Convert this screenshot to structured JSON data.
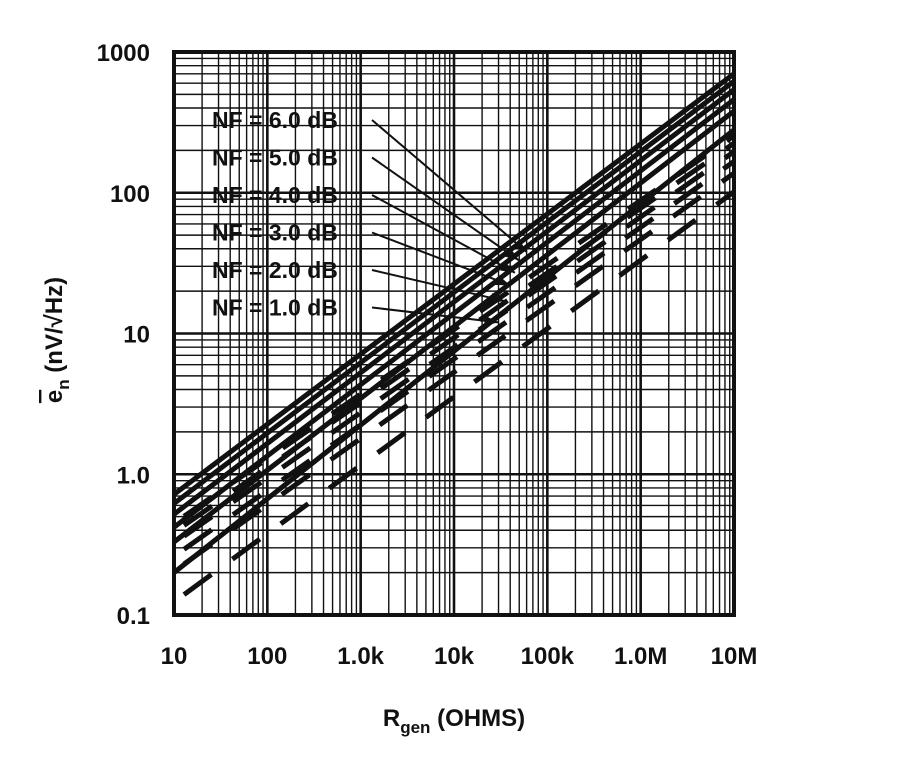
{
  "chart_data": {
    "type": "line",
    "xscale": "log",
    "yscale": "log",
    "xlim": [
      10,
      10000000
    ],
    "ylim": [
      0.1,
      1000
    ],
    "grid": true,
    "x_ticks": [
      {
        "value": 10,
        "label": "10"
      },
      {
        "value": 100,
        "label": "100"
      },
      {
        "value": 1000,
        "label": "1.0k"
      },
      {
        "value": 10000,
        "label": "10k"
      },
      {
        "value": 100000,
        "label": "100k"
      },
      {
        "value": 1000000,
        "label": "1.0M"
      },
      {
        "value": 10000000,
        "label": "10M"
      }
    ],
    "y_ticks": [
      {
        "value": 0.1,
        "label": "0.1"
      },
      {
        "value": 1,
        "label": "1.0"
      },
      {
        "value": 10,
        "label": "10"
      },
      {
        "value": 100,
        "label": "100"
      },
      {
        "value": 1000,
        "label": "1000"
      }
    ],
    "xlabel": {
      "main": "R",
      "sub": "gen",
      "rest": " (OHMS)"
    },
    "ylabel": {
      "bar": "e",
      "sub": "n",
      "rest": " (nV/√Hz)"
    },
    "series": [
      {
        "name": "NF = 6.0 dB",
        "points": [
          [
            10,
            0.72
          ],
          [
            60000,
            38
          ],
          [
            10000000,
            700
          ]
        ]
      },
      {
        "name": "NF = 5.0 dB",
        "points": [
          [
            10,
            0.62
          ],
          [
            50000,
            33
          ],
          [
            10000000,
            620
          ]
        ]
      },
      {
        "name": "NF = 4.0 dB",
        "points": [
          [
            10,
            0.52
          ],
          [
            45000,
            27
          ],
          [
            10000000,
            540
          ]
        ]
      },
      {
        "name": "NF = 3.0 dB",
        "points": [
          [
            10,
            0.42
          ],
          [
            40000,
            22
          ],
          [
            10000000,
            460
          ]
        ]
      },
      {
        "name": "NF = 2.0 dB",
        "points": [
          [
            10,
            0.33
          ],
          [
            35000,
            17
          ],
          [
            10000000,
            380
          ]
        ]
      },
      {
        "name": "NF = 1.0 dB",
        "points": [
          [
            10,
            0.2
          ],
          [
            30000,
            12
          ],
          [
            10000000,
            280
          ]
        ]
      }
    ]
  }
}
